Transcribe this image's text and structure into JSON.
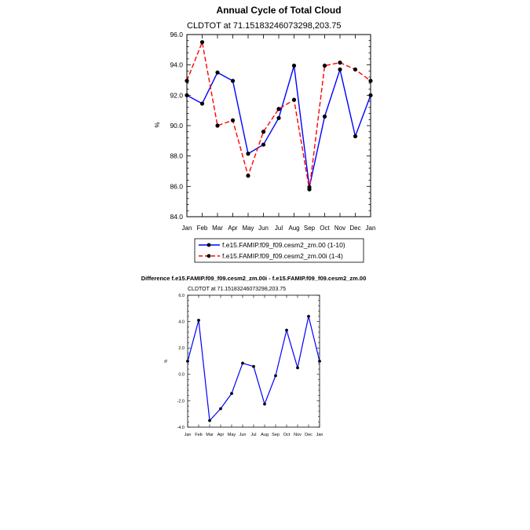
{
  "chart_data": [
    {
      "type": "line",
      "title": "Annual Cycle of Total Cloud",
      "subtitle": "CLDTOT at 71.15183246073298,203.75",
      "ylabel": "%",
      "xlabel": "",
      "categories": [
        "Jan",
        "Feb",
        "Mar",
        "Apr",
        "May",
        "Jun",
        "Jul",
        "Aug",
        "Sep",
        "Oct",
        "Nov",
        "Dec",
        "Jan"
      ],
      "ylim": [
        84.0,
        96.0
      ],
      "yticks": [
        "84.0",
        "86.0",
        "88.0",
        "90.0",
        "92.0",
        "94.0",
        "96.0"
      ],
      "grid": false,
      "legend_position": "bottom",
      "series": [
        {
          "name": "f.e15.FAMIP.f09_f09.cesm2_zm.00 (1-10)",
          "color": "#0000ff",
          "dash": "solid",
          "values": [
            92.0,
            91.45,
            93.5,
            92.95,
            88.15,
            88.75,
            90.5,
            93.95,
            85.95,
            90.6,
            93.7,
            89.3,
            92.0
          ]
        },
        {
          "name": "f.e15.FAMIP.f09_f09.cesm2_zm.00i (1-4)",
          "color": "#ff0000",
          "dash": "dashed",
          "values": [
            92.95,
            95.5,
            90.0,
            90.35,
            86.7,
            89.6,
            91.1,
            91.7,
            85.8,
            93.95,
            94.15,
            93.7,
            92.95
          ]
        }
      ]
    },
    {
      "type": "line",
      "title": "Difference f.e15.FAMIP.f09_f09.cesm2_zm.00i - f.e15.FAMIP.f09_f09.cesm2_zm.00",
      "subtitle": "CLDTOT at 71.15183246073298,203.75",
      "ylabel": "%",
      "xlabel": "",
      "categories": [
        "Jan",
        "Feb",
        "Mar",
        "Apr",
        "May",
        "Jun",
        "Jul",
        "Aug",
        "Sep",
        "Oct",
        "Nov",
        "Dec",
        "Jan"
      ],
      "ylim": [
        -4.0,
        6.0
      ],
      "yticks": [
        "-4.0",
        "-2.0",
        "0.0",
        "2.0",
        "4.0",
        "6.0"
      ],
      "grid": false,
      "series": [
        {
          "color": "#0000ff",
          "values": [
            1.0,
            4.1,
            -3.5,
            -2.6,
            -1.45,
            0.85,
            0.6,
            -2.25,
            -0.1,
            3.35,
            0.5,
            4.4,
            1.0
          ]
        }
      ]
    }
  ]
}
